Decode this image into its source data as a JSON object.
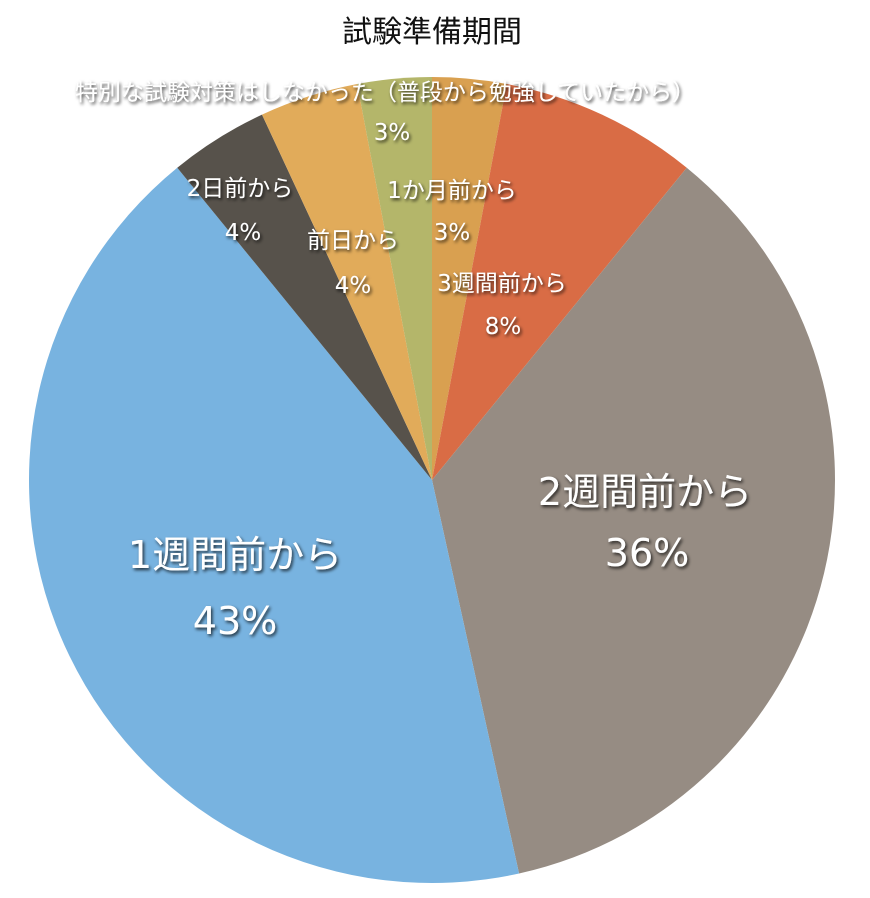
{
  "chart_data": {
    "type": "pie",
    "title": "試験準備期間",
    "start_angle": "top, clockwise",
    "slices": [
      {
        "label": "1か月前から",
        "value": 3,
        "pct_label": "3%",
        "color": "#D9A050"
      },
      {
        "label": "3週間前から",
        "value": 8,
        "pct_label": "8%",
        "color": "#D96C45"
      },
      {
        "label": "2週間前から",
        "value": 36,
        "pct_label": "36%",
        "color": "#968C83"
      },
      {
        "label": "1週間前から",
        "value": 43,
        "pct_label": "43%",
        "color": "#78B3E0"
      },
      {
        "label": "2日前から",
        "value": 4,
        "pct_label": "4%",
        "color": "#57524B"
      },
      {
        "label": "前日から",
        "value": 4,
        "pct_label": "4%",
        "color": "#E1AB5A"
      },
      {
        "label": "特別な試験対策はしなかった（普段から勉強していたから）",
        "value": 3,
        "pct_label": "3%",
        "color": "#B4B66A"
      }
    ],
    "legend": "none"
  }
}
